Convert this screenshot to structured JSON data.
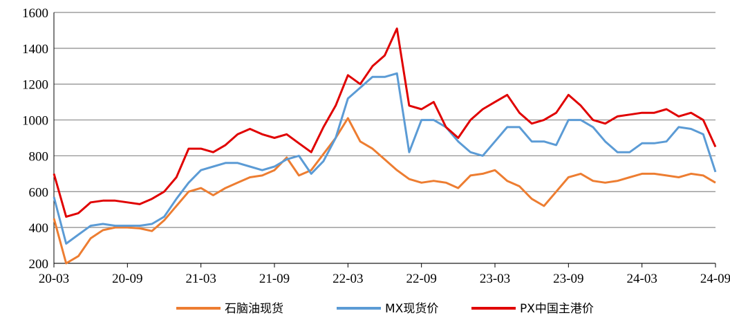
{
  "chart_data": {
    "type": "line",
    "title": "",
    "xlabel": "",
    "ylabel": "",
    "ylim": [
      200,
      1600
    ],
    "y_ticks": [
      "200",
      "400",
      "600",
      "800",
      "1000",
      "1200",
      "1400",
      "1600"
    ],
    "x_range": [
      "2020-03",
      "2024-09"
    ],
    "x_ticks": [
      "20-03",
      "20-09",
      "21-03",
      "21-09",
      "22-03",
      "22-09",
      "23-03",
      "23-09",
      "24-03",
      "24-09"
    ],
    "grid": "horizontal",
    "legend_position": "bottom",
    "x": [
      "2020-03",
      "2020-04",
      "2020-05",
      "2020-06",
      "2020-07",
      "2020-08",
      "2020-09",
      "2020-10",
      "2020-11",
      "2020-12",
      "2021-01",
      "2021-02",
      "2021-03",
      "2021-04",
      "2021-05",
      "2021-06",
      "2021-07",
      "2021-08",
      "2021-09",
      "2021-10",
      "2021-11",
      "2021-12",
      "2022-01",
      "2022-02",
      "2022-03",
      "2022-04",
      "2022-05",
      "2022-06",
      "2022-07",
      "2022-08",
      "2022-09",
      "2022-10",
      "2022-11",
      "2022-12",
      "2023-01",
      "2023-02",
      "2023-03",
      "2023-04",
      "2023-05",
      "2023-06",
      "2023-07",
      "2023-08",
      "2023-09",
      "2023-10",
      "2023-11",
      "2023-12",
      "2024-01",
      "2024-02",
      "2024-03",
      "2024-04",
      "2024-05",
      "2024-06",
      "2024-07",
      "2024-08",
      "2024-09"
    ],
    "series": [
      {
        "name": "石脑油现货",
        "color": "#ED7D31",
        "values": [
          450,
          200,
          240,
          340,
          385,
          400,
          400,
          395,
          380,
          440,
          520,
          600,
          620,
          580,
          620,
          650,
          680,
          690,
          720,
          790,
          690,
          720,
          810,
          900,
          1010,
          880,
          840,
          780,
          720,
          670,
          650,
          660,
          650,
          620,
          690,
          700,
          720,
          660,
          630,
          560,
          520,
          600,
          680,
          700,
          660,
          650,
          660,
          680,
          700,
          700,
          690,
          680,
          700,
          690,
          650
        ]
      },
      {
        "name": "MX现货价",
        "color": "#5B9BD5",
        "values": [
          570,
          310,
          360,
          410,
          420,
          410,
          410,
          410,
          420,
          460,
          560,
          650,
          720,
          740,
          760,
          760,
          740,
          720,
          740,
          780,
          800,
          700,
          770,
          900,
          1120,
          1180,
          1240,
          1240,
          1260,
          820,
          1000,
          1000,
          960,
          880,
          820,
          800,
          880,
          960,
          960,
          880,
          880,
          860,
          1000,
          1000,
          960,
          880,
          820,
          820,
          870,
          870,
          880,
          960,
          950,
          920,
          710
        ]
      },
      {
        "name": "PX中国主港价",
        "color": "#E00000",
        "values": [
          700,
          460,
          480,
          540,
          550,
          550,
          540,
          530,
          560,
          600,
          680,
          840,
          840,
          820,
          860,
          920,
          950,
          920,
          900,
          920,
          870,
          820,
          960,
          1080,
          1250,
          1200,
          1300,
          1360,
          1510,
          1080,
          1060,
          1100,
          960,
          900,
          1000,
          1060,
          1100,
          1140,
          1040,
          980,
          1000,
          1040,
          1140,
          1080,
          1000,
          980,
          1020,
          1030,
          1040,
          1040,
          1060,
          1020,
          1040,
          1000,
          850
        ]
      }
    ]
  }
}
